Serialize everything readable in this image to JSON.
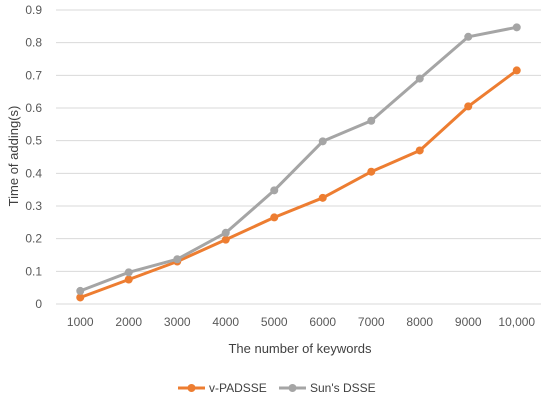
{
  "chart_data": {
    "type": "line",
    "title": "",
    "xlabel": "The number of keywords",
    "ylabel": "Time of adding(s)",
    "categories": [
      "1000",
      "2000",
      "3000",
      "4000",
      "5000",
      "6000",
      "7000",
      "8000",
      "9000",
      "10,000"
    ],
    "ylim": [
      0,
      0.9
    ],
    "yticks": [
      "0",
      "0.1",
      "0.2",
      "0.3",
      "0.4",
      "0.5",
      "0.6",
      "0.7",
      "0.8",
      "0.9"
    ],
    "grid": true,
    "legend_position": "bottom",
    "series": [
      {
        "name": "v-PADSSE",
        "color": "#ED7D31",
        "values": [
          0.02,
          0.075,
          0.13,
          0.197,
          0.265,
          0.325,
          0.405,
          0.47,
          0.605,
          0.715
        ]
      },
      {
        "name": "Sun's DSSE",
        "color": "#A5A5A5",
        "values": [
          0.04,
          0.097,
          0.137,
          0.218,
          0.348,
          0.498,
          0.561,
          0.69,
          0.818,
          0.847
        ]
      }
    ]
  }
}
